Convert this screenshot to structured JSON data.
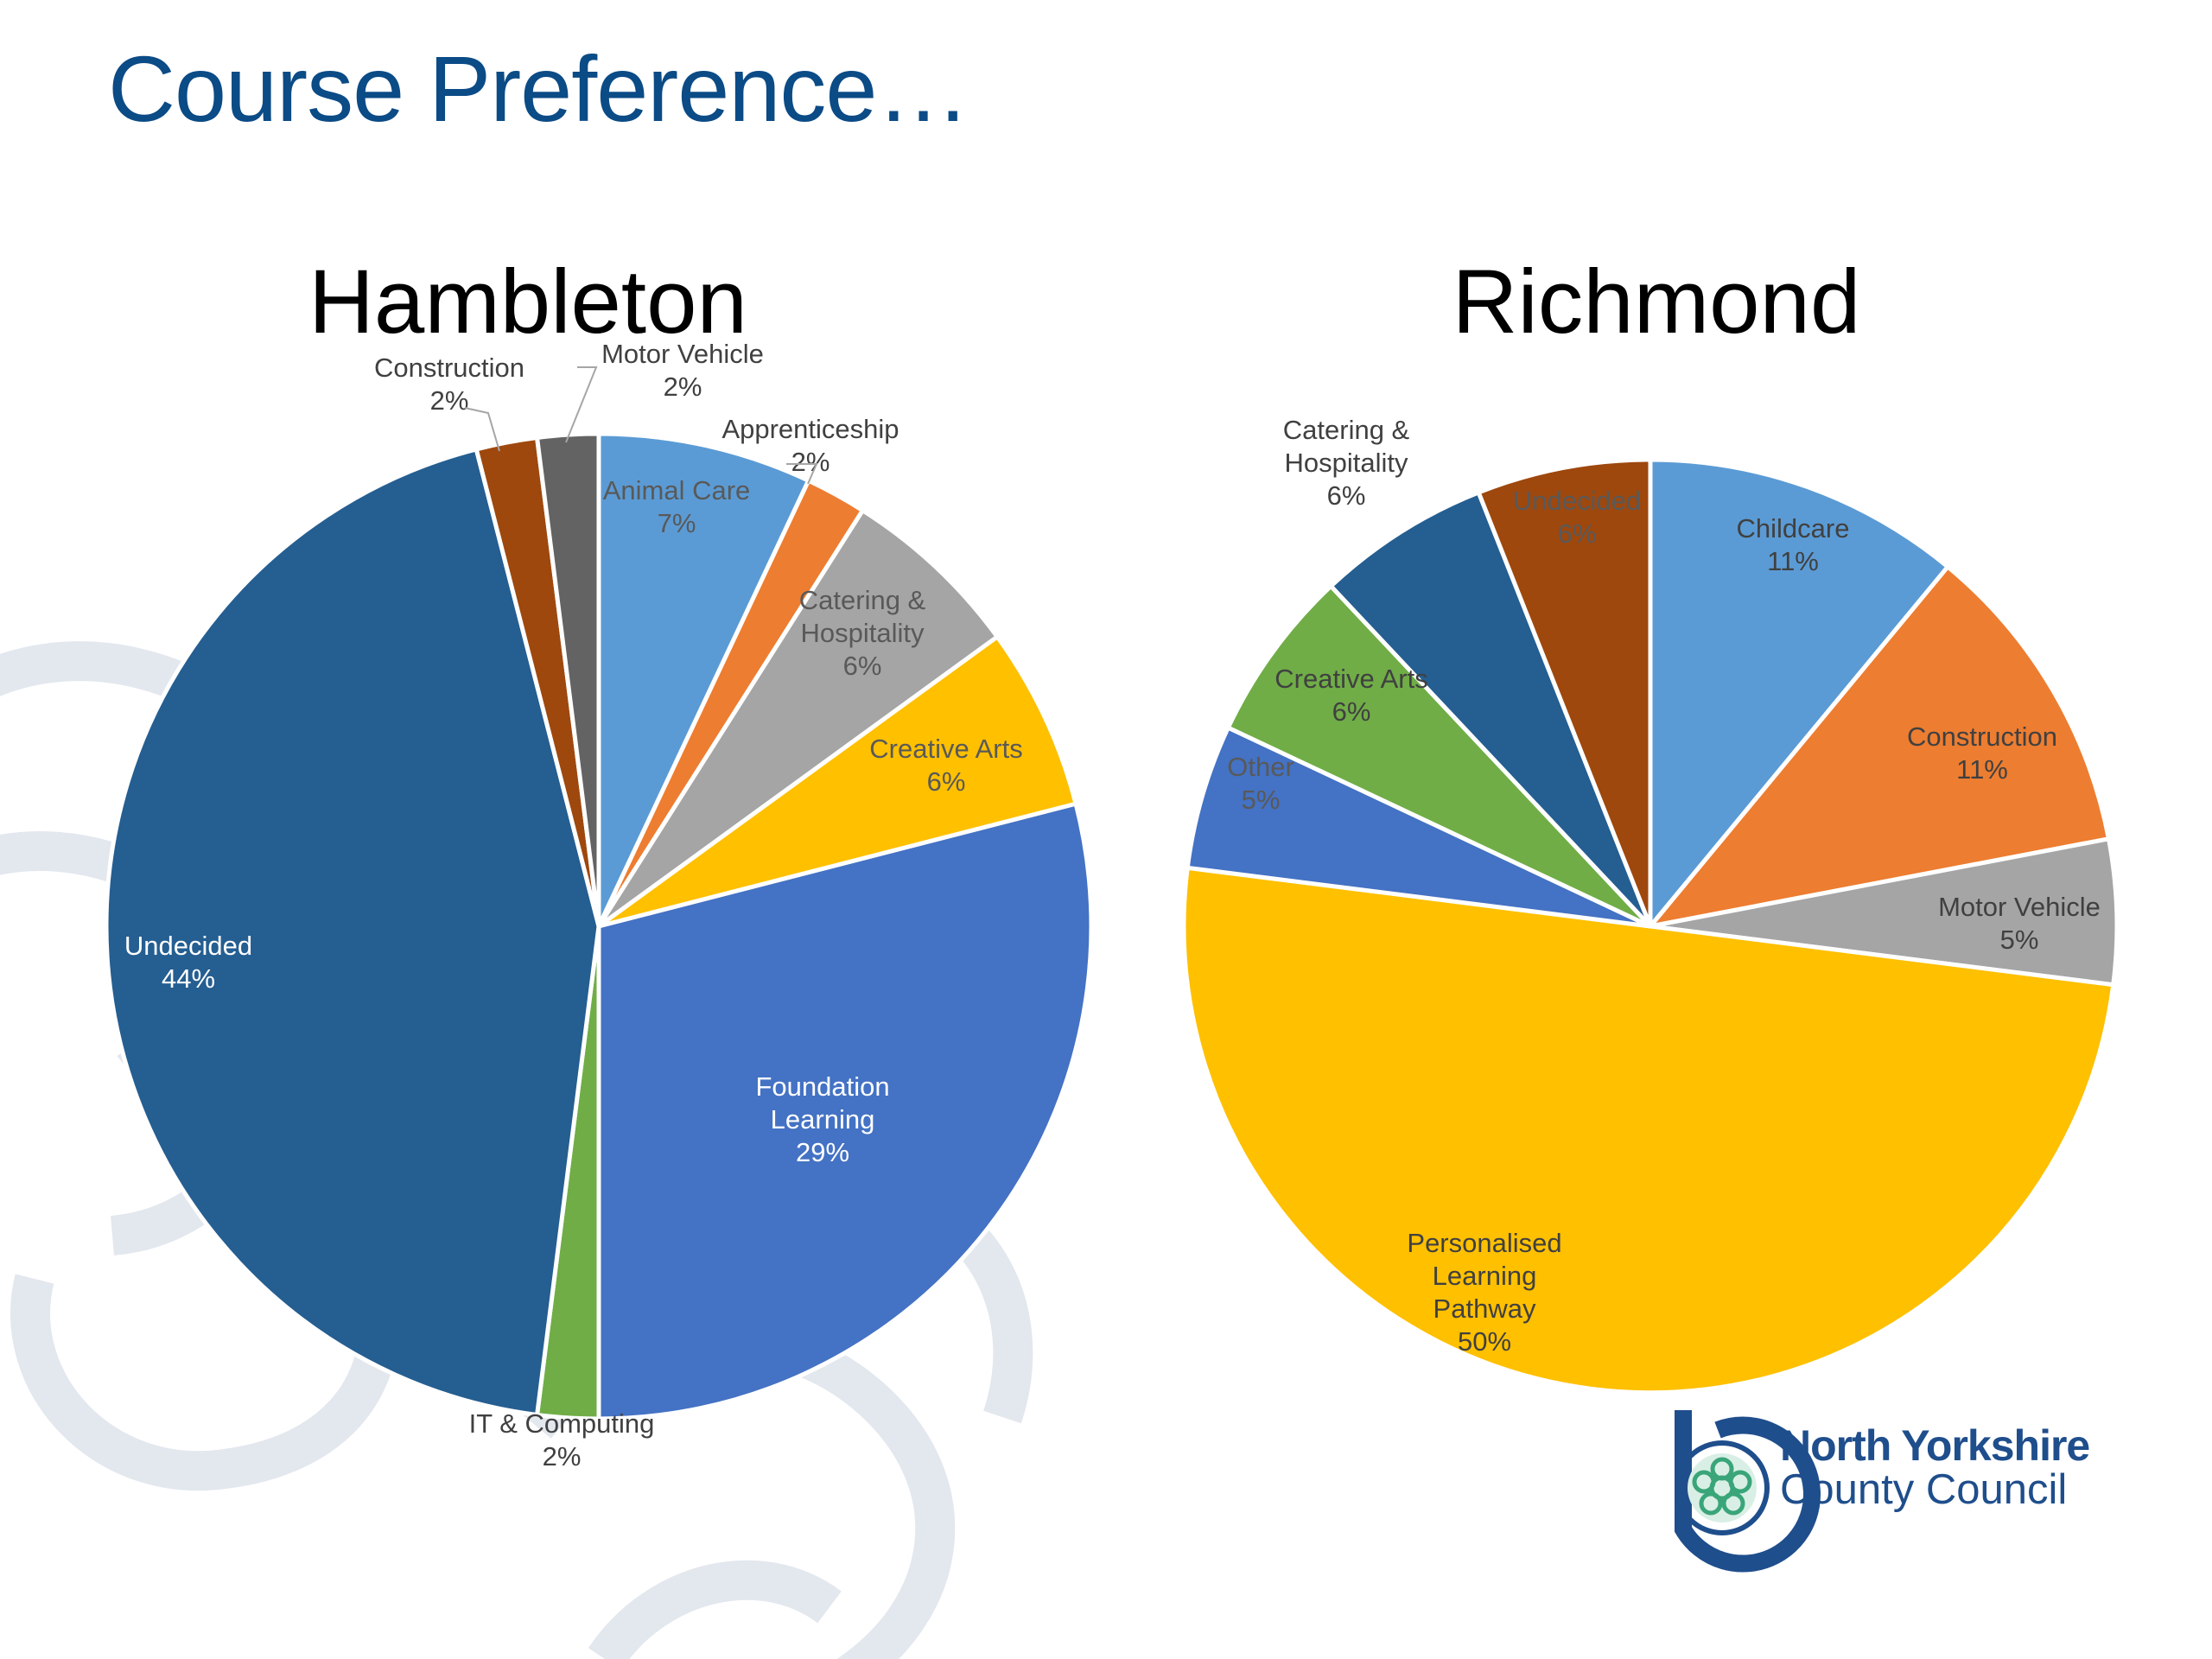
{
  "slide": {
    "title": "Course Preference…"
  },
  "logo": {
    "line1": "North Yorkshire",
    "line2": "County Council"
  },
  "chart_data": [
    {
      "type": "pie",
      "title": "Hambleton",
      "slices": [
        {
          "label": "Animal Care",
          "pct_label": "7%",
          "value": 7,
          "color": "#5b9bd5",
          "label_color": "#595959"
        },
        {
          "label": "Apprenticeship",
          "pct_label": "2%",
          "value": 2,
          "color": "#ed7d31",
          "label_color": "#404040"
        },
        {
          "label": "Catering & Hospitality",
          "pct_label": "6%",
          "value": 6,
          "color": "#a5a5a5",
          "label_color": "#595959"
        },
        {
          "label": "Creative Arts",
          "pct_label": "6%",
          "value": 6,
          "color": "#ffc000",
          "label_color": "#595959"
        },
        {
          "label": "Foundation Learning",
          "pct_label": "29%",
          "value": 29,
          "color": "#4472c4",
          "label_color": "#ffffff"
        },
        {
          "label": "IT & Computing",
          "pct_label": "2%",
          "value": 2,
          "color": "#70ad47",
          "label_color": "#404040"
        },
        {
          "label": "Undecided",
          "pct_label": "44%",
          "value": 44,
          "color": "#255e91",
          "label_color": "#ffffff"
        },
        {
          "label": "Construction",
          "pct_label": "2%",
          "value": 2,
          "color": "#9e480e",
          "label_color": "#404040"
        },
        {
          "label": "Motor Vehicle",
          "pct_label": "2%",
          "value": 2,
          "color": "#636363",
          "label_color": "#404040"
        }
      ]
    },
    {
      "type": "pie",
      "title": "Richmond",
      "slices": [
        {
          "label": "Childcare",
          "pct_label": "11%",
          "value": 11,
          "color": "#5b9bd5",
          "label_color": "#404040"
        },
        {
          "label": "Construction",
          "pct_label": "11%",
          "value": 11,
          "color": "#ed7d31",
          "label_color": "#404040"
        },
        {
          "label": "Motor Vehicle",
          "pct_label": "5%",
          "value": 5,
          "color": "#a5a5a5",
          "label_color": "#404040"
        },
        {
          "label": "Personalised Learning Pathway",
          "pct_label": "50%",
          "value": 50,
          "color": "#ffc000",
          "label_color": "#404040"
        },
        {
          "label": "Other",
          "pct_label": "5%",
          "value": 5,
          "color": "#4472c4",
          "label_color": "#595959"
        },
        {
          "label": "Creative Arts",
          "pct_label": "6%",
          "value": 6,
          "color": "#70ad47",
          "label_color": "#404040"
        },
        {
          "label": "Catering & Hospitality",
          "pct_label": "6%",
          "value": 6,
          "color": "#255e91",
          "label_color": "#404040"
        },
        {
          "label": "Undecided",
          "pct_label": "6%",
          "value": 6,
          "color": "#9e480e",
          "label_color": "#595959"
        }
      ]
    }
  ]
}
